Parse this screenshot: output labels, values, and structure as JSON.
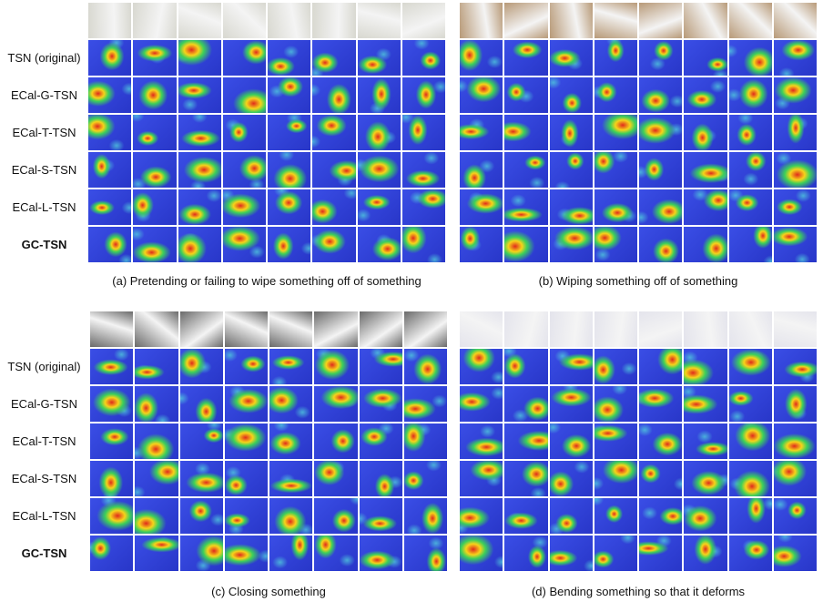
{
  "panels": [
    {
      "caption": "(a) Pretending or failing to wipe something off of something",
      "row_labels": [
        "TSN (original)",
        "ECal-G-TSN",
        "ECal-T-TSN",
        "ECal-S-TSN",
        "ECal-L-TSN",
        "GC-TSN"
      ]
    },
    {
      "caption": "(b) Wiping something off of something"
    },
    {
      "caption": "(c) Closing something",
      "row_labels": [
        "TSN (original)",
        "ECal-G-TSN",
        "ECal-T-TSN",
        "ECal-S-TSN",
        "ECal-L-TSN",
        "GC-TSN"
      ]
    },
    {
      "caption": "(d) Bending something so that it deforms"
    }
  ]
}
